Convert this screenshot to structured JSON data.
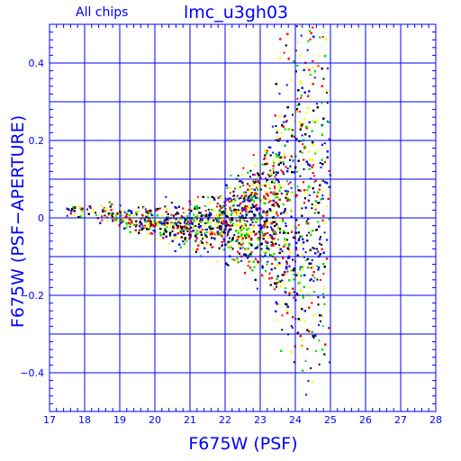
{
  "chart_data": {
    "type": "scatter",
    "title": "lmc_u3gh03",
    "subtitle": "All chips",
    "xlabel": "F675W (PSF)",
    "ylabel": "F675W (PSF−APERTURE)",
    "xlim": [
      17,
      28
    ],
    "ylim": [
      -0.5,
      0.5
    ],
    "x_ticks": [
      17,
      18,
      19,
      20,
      21,
      22,
      23,
      24,
      25,
      26,
      27,
      28
    ],
    "x_tick_labels": [
      "17",
      "18",
      "19",
      "20",
      "21",
      "22",
      "23",
      "24",
      "25",
      "26",
      "27",
      "28"
    ],
    "y_ticks": [
      -0.4,
      -0.2,
      0,
      0.2,
      0.4
    ],
    "y_tick_labels": [
      "−0.4",
      "−0.2",
      "0",
      "0.2",
      "0.4"
    ],
    "grid": true,
    "series_colors": [
      "#000000",
      "#ff0000",
      "#00dd00",
      "#0000ff",
      "#ffff00"
    ],
    "point_density_profile": {
      "x": [
        17.5,
        18,
        19,
        20,
        21,
        22,
        22.5,
        23,
        23.5,
        24,
        24.5,
        24.9
      ],
      "median_y": [
        0.02,
        0.01,
        0.0,
        -0.01,
        -0.02,
        -0.01,
        0.0,
        0.01,
        0.01,
        0.02,
        0.03,
        0.05
      ],
      "spread_y": [
        0.01,
        0.01,
        0.015,
        0.02,
        0.03,
        0.04,
        0.06,
        0.08,
        0.12,
        0.18,
        0.25,
        0.3
      ],
      "relative_density": [
        0.05,
        0.1,
        0.2,
        0.3,
        0.45,
        0.7,
        0.9,
        1.0,
        1.0,
        1.0,
        0.9,
        0.6
      ]
    },
    "magnitude_cutoff": 25.0
  },
  "colors": {
    "axes": "#0000ff",
    "background": "#ffffff"
  }
}
